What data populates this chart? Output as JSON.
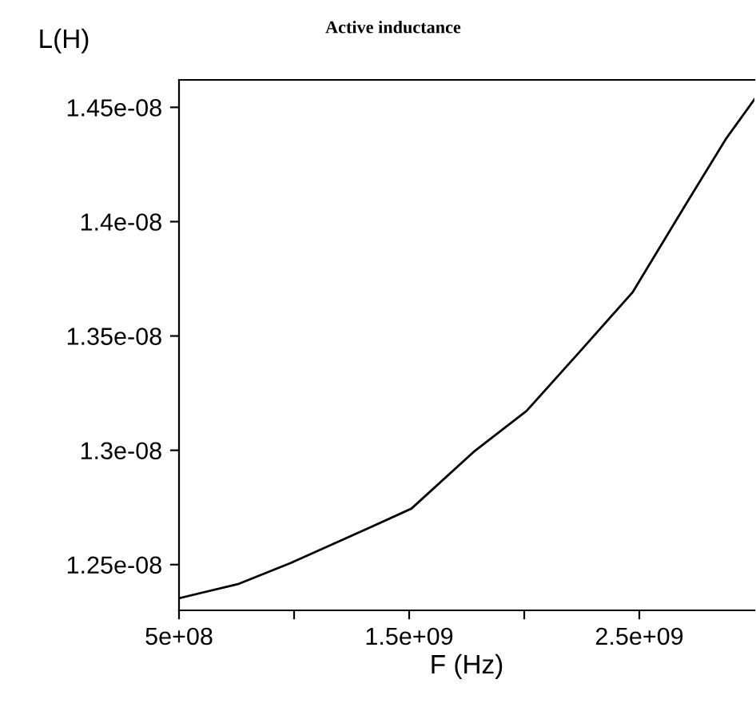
{
  "chart_data": {
    "type": "line",
    "title": "Active inductance",
    "xlabel": "F (Hz)",
    "ylabel": "L(H)",
    "x": [
      500000000.0,
      760000000.0,
      985000000.0,
      1326000000.0,
      1510000000.0,
      1780000000.0,
      2010000000.0,
      2240000000.0,
      2470000000.0,
      2690000000.0,
      2875000000.0,
      3000000000.0
    ],
    "series": [
      {
        "color": "#000000",
        "values": [
          1.2353e-08,
          1.2416e-08,
          1.2507e-08,
          1.2661e-08,
          1.2745e-08,
          1.2993e-08,
          1.3172e-08,
          1.343e-08,
          1.369e-08,
          1.4056e-08,
          1.436e-08,
          1.4535e-08
        ]
      }
    ],
    "xlim": [
      500000000.0,
      3000000000.0
    ],
    "ylim": [
      1.23e-08,
      1.462e-08
    ],
    "xticks": [
      {
        "value": 500000000.0,
        "label": "5e+08"
      },
      {
        "value": 1000000000.0,
        "label": null
      },
      {
        "value": 1500000000.0,
        "label": "1.5e+09"
      },
      {
        "value": 2000000000.0,
        "label": null
      },
      {
        "value": 2500000000.0,
        "label": "2.5e+09"
      }
    ],
    "yticks": [
      {
        "value": 1.25e-08,
        "label": "1.25e-08"
      },
      {
        "value": 1.3e-08,
        "label": "1.3e-08"
      },
      {
        "value": 1.35e-08,
        "label": "1.35e-08"
      },
      {
        "value": 1.4e-08,
        "label": "1.4e-08"
      },
      {
        "value": 1.45e-08,
        "label": "1.45e-08"
      }
    ],
    "grid": false,
    "legend": false,
    "marker": "none",
    "line_style": "solid"
  }
}
